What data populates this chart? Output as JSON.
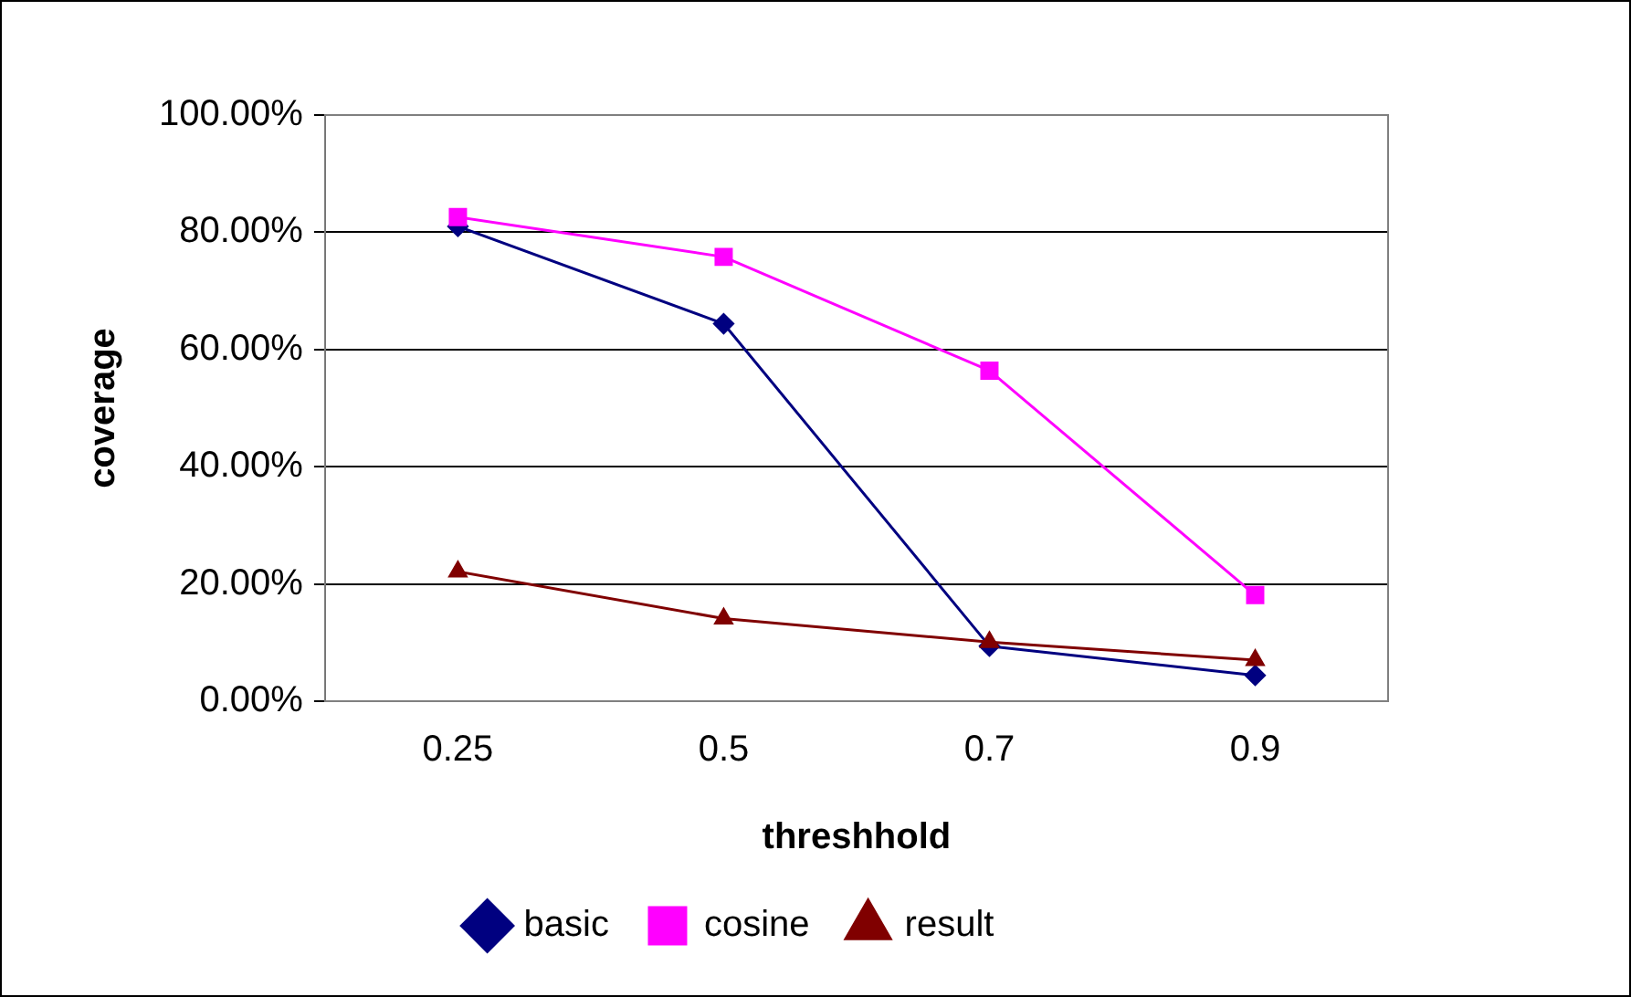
{
  "chart_data": {
    "type": "line",
    "xlabel": "threshhold",
    "ylabel": "coverage",
    "categories": [
      "0.25",
      "0.5",
      "0.7",
      "0.9"
    ],
    "series": [
      {
        "name": "basic",
        "color": "#000080",
        "marker": "diamond",
        "values": [
          81,
          64.4,
          9.4,
          4.4
        ]
      },
      {
        "name": "cosine",
        "color": "#ff00ff",
        "marker": "square",
        "values": [
          82.6,
          75.8,
          56.4,
          18.1
        ]
      },
      {
        "name": "result",
        "color": "#800000",
        "marker": "triangle",
        "values": [
          22.1,
          14.1,
          10.1,
          7
        ]
      }
    ],
    "ylim": [
      0,
      100
    ],
    "yticks": [
      {
        "value": 0,
        "label": "0.00%"
      },
      {
        "value": 20,
        "label": "20.00%"
      },
      {
        "value": 40,
        "label": "40.00%"
      },
      {
        "value": 60,
        "label": "60.00%"
      },
      {
        "value": 80,
        "label": "80.00%"
      },
      {
        "value": 100,
        "label": "100.00%"
      }
    ],
    "grid": "y",
    "legend": "bottom",
    "line_style": "solid"
  }
}
